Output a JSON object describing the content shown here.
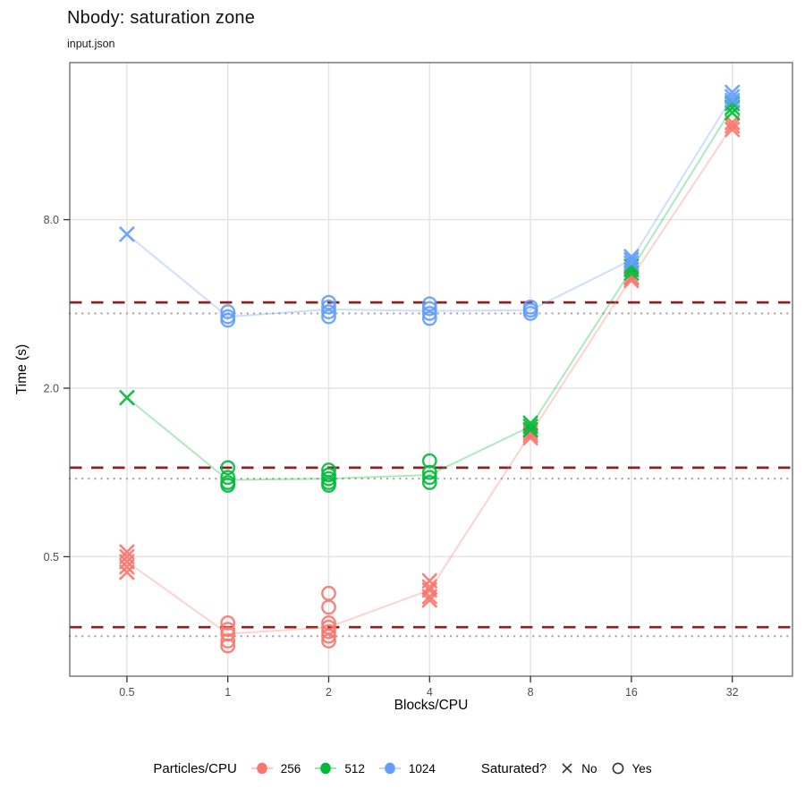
{
  "chart_data": {
    "type": "scatter",
    "title": "Nbody: saturation zone",
    "subtitle": "input.json",
    "xlabel": "Blocks/CPU",
    "ylabel": "Time (s)",
    "x_scale": "log2",
    "y_scale": "log",
    "x_ticks": [
      "0.5",
      "1",
      "2",
      "4",
      "8",
      "16",
      "32"
    ],
    "y_ticks": [
      "0.5",
      "2.0",
      "8.0"
    ],
    "x_range": [
      0.33,
      48
    ],
    "y_range": [
      0.19,
      29
    ],
    "grid": "major-only",
    "legend_position": "bottom",
    "colors": {
      "threshold_dashed": "#8B2121",
      "median_dotted": "#A8A8A8",
      "grid": "#E4E4E4",
      "panel_border": "#595959",
      "tick_text": "#4D4D4D"
    },
    "legend": {
      "color_title": "Particles/CPU",
      "shape_title": "Saturated?",
      "no_label": "No",
      "yes_label": "Yes"
    },
    "series": [
      {
        "name": "256",
        "color": "#F8766D",
        "dashed_threshold": 0.28,
        "dotted_median": 0.26,
        "groups": [
          {
            "x": 0.5,
            "saturated": false,
            "values": [
              0.52,
              0.5,
              0.48,
              0.46,
              0.44
            ]
          },
          {
            "x": 1,
            "saturated": true,
            "values": [
              0.29,
              0.275,
              0.265,
              0.25,
              0.24
            ]
          },
          {
            "x": 2,
            "saturated": true,
            "values": [
              0.37,
              0.33,
              0.29,
              0.28,
              0.27,
              0.26,
              0.25
            ]
          },
          {
            "x": 4,
            "saturated": false,
            "values": [
              0.41,
              0.39,
              0.38,
              0.36,
              0.35
            ]
          },
          {
            "x": 8,
            "saturated": false,
            "values": [
              1.42,
              1.39,
              1.36,
              1.33
            ]
          },
          {
            "x": 16,
            "saturated": false,
            "values": [
              5.0,
              4.95,
              4.85
            ]
          },
          {
            "x": 32,
            "saturated": false,
            "values": [
              17.8,
              17.3,
              16.8
            ]
          }
        ]
      },
      {
        "name": "512",
        "color": "#00BA38",
        "dashed_threshold": 1.04,
        "dotted_median": 0.95,
        "groups": [
          {
            "x": 0.5,
            "saturated": false,
            "values": [
              1.85
            ]
          },
          {
            "x": 1,
            "saturated": true,
            "values": [
              1.04,
              0.96,
              0.92,
              0.9
            ]
          },
          {
            "x": 2,
            "saturated": true,
            "values": [
              1.02,
              0.98,
              0.95,
              0.92,
              0.9
            ]
          },
          {
            "x": 4,
            "saturated": true,
            "values": [
              1.1,
              1.0,
              0.96,
              0.92
            ]
          },
          {
            "x": 8,
            "saturated": false,
            "values": [
              1.5,
              1.46,
              1.42
            ]
          },
          {
            "x": 16,
            "saturated": false,
            "values": [
              5.45,
              5.3,
              5.15
            ]
          },
          {
            "x": 32,
            "saturated": false,
            "values": [
              20.8,
              20.1,
              19.3
            ]
          }
        ]
      },
      {
        "name": "1024",
        "color": "#619CFF",
        "dashed_threshold": 4.05,
        "dotted_median": 3.7,
        "groups": [
          {
            "x": 0.5,
            "saturated": false,
            "values": [
              7.1
            ]
          },
          {
            "x": 1,
            "saturated": true,
            "values": [
              3.75,
              3.6,
              3.5
            ]
          },
          {
            "x": 2,
            "saturated": true,
            "values": [
              4.05,
              3.9,
              3.75,
              3.6
            ]
          },
          {
            "x": 4,
            "saturated": true,
            "values": [
              4.0,
              3.85,
              3.7,
              3.55
            ]
          },
          {
            "x": 8,
            "saturated": true,
            "values": [
              3.9,
              3.8,
              3.7
            ]
          },
          {
            "x": 16,
            "saturated": false,
            "values": [
              5.9,
              5.75,
              5.6
            ]
          },
          {
            "x": 32,
            "saturated": false,
            "values": [
              22.8,
              22.0,
              21.3
            ]
          }
        ]
      }
    ]
  }
}
